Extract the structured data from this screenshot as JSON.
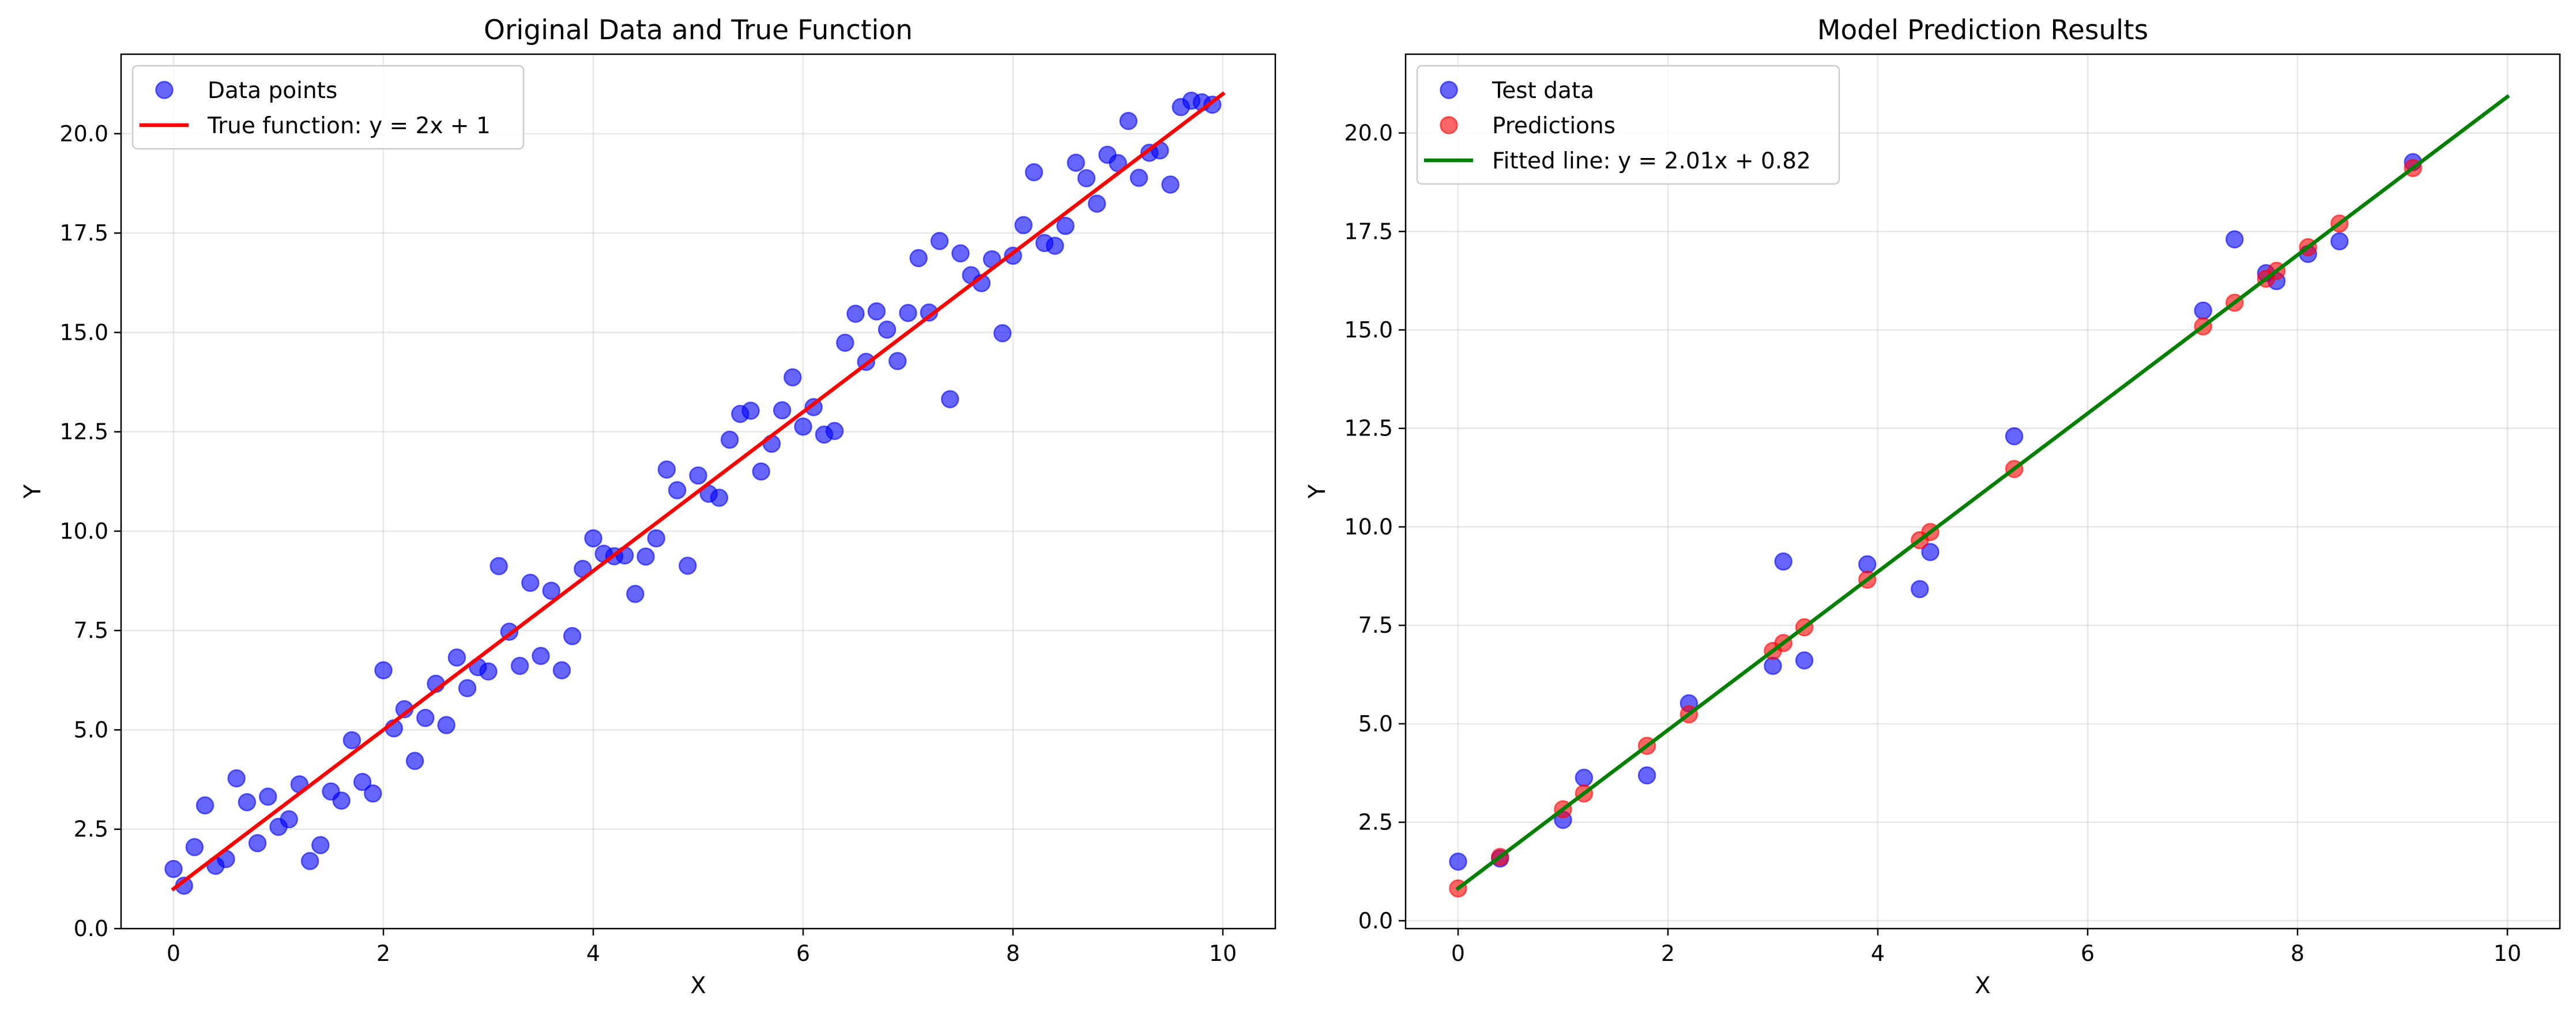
{
  "chart_data": [
    {
      "type": "scatter",
      "title": "Original Data and True Function",
      "xlabel": "X",
      "ylabel": "Y",
      "xlim": [
        -0.5,
        10.5
      ],
      "ylim": [
        0,
        22
      ],
      "xticks": [
        0,
        2,
        4,
        6,
        8,
        10
      ],
      "xtick_labels": [
        "0",
        "2",
        "4",
        "6",
        "8",
        "10"
      ],
      "yticks": [
        0,
        2.5,
        5,
        7.5,
        10,
        12.5,
        15,
        17.5,
        20
      ],
      "ytick_labels": [
        "0.0",
        "2.5",
        "5.0",
        "7.5",
        "10.0",
        "12.5",
        "15.0",
        "17.5",
        "20.0"
      ],
      "grid": true,
      "legend_position": "top-left",
      "series": [
        {
          "name": "Data points",
          "kind": "scatter",
          "color": "#0000ff",
          "x": [
            0.0,
            0.1,
            0.2,
            0.3,
            0.4,
            0.5,
            0.6,
            0.7,
            0.8,
            0.9,
            1.0,
            1.1,
            1.2,
            1.3,
            1.4,
            1.5,
            1.6,
            1.7,
            1.8,
            1.9,
            2.0,
            2.1,
            2.2,
            2.3,
            2.4,
            2.5,
            2.6,
            2.7,
            2.8,
            2.9,
            3.0,
            3.1,
            3.2,
            3.3,
            3.4,
            3.5,
            3.6,
            3.7,
            3.8,
            3.9,
            4.0,
            4.1,
            4.2,
            4.3,
            4.4,
            4.5,
            4.6,
            4.7,
            4.8,
            4.9,
            5.0,
            5.1,
            5.2,
            5.3,
            5.4,
            5.5,
            5.6,
            5.7,
            5.8,
            5.9,
            6.0,
            6.1,
            6.2,
            6.3,
            6.4,
            6.5,
            6.6,
            6.7,
            6.8,
            6.9,
            7.0,
            7.1,
            7.2,
            7.3,
            7.4,
            7.5,
            7.6,
            7.7,
            7.8,
            7.9,
            8.0,
            8.1,
            8.2,
            8.3,
            8.4,
            8.5,
            8.6,
            8.7,
            8.8,
            8.9,
            9.0,
            9.1,
            9.2,
            9.3,
            9.4,
            9.5,
            9.6,
            9.7,
            9.8,
            9.9
          ],
          "y": [
            1.5,
            1.08,
            2.05,
            3.1,
            1.58,
            1.75,
            3.78,
            3.18,
            2.15,
            3.32,
            2.56,
            2.75,
            3.63,
            1.7,
            2.1,
            3.45,
            3.22,
            4.74,
            3.69,
            3.4,
            6.5,
            5.04,
            5.52,
            4.22,
            5.3,
            6.16,
            5.12,
            6.82,
            6.05,
            6.58,
            6.47,
            9.12,
            7.47,
            6.61,
            8.7,
            6.86,
            8.5,
            6.5,
            7.36,
            9.05,
            9.82,
            9.43,
            9.37,
            9.39,
            8.42,
            9.36,
            9.82,
            11.55,
            11.03,
            9.13,
            11.4,
            10.94,
            10.84,
            12.3,
            12.95,
            13.03,
            11.5,
            12.2,
            13.04,
            13.87,
            12.63,
            13.12,
            12.43,
            12.52,
            14.74,
            15.47,
            14.26,
            15.53,
            15.07,
            14.28,
            15.49,
            16.87,
            15.5,
            17.3,
            13.32,
            16.99,
            16.44,
            16.24,
            16.84,
            14.98,
            16.93,
            17.7,
            19.03,
            17.25,
            17.18,
            17.68,
            19.27,
            18.88,
            18.24,
            19.47,
            19.26,
            20.32,
            18.89,
            19.52,
            19.58,
            18.72,
            20.67,
            20.83,
            20.79,
            20.73
          ]
        },
        {
          "name": "True function: y = 2x + 1",
          "kind": "line",
          "color": "#ff0000",
          "x": [
            0,
            10
          ],
          "y": [
            1,
            21
          ]
        }
      ]
    },
    {
      "type": "scatter",
      "title": "Model Prediction Results",
      "xlabel": "X",
      "ylabel": "Y",
      "xlim": [
        -0.5,
        10.5
      ],
      "ylim": [
        -0.2,
        22
      ],
      "xticks": [
        0,
        2,
        4,
        6,
        8,
        10
      ],
      "xtick_labels": [
        "0",
        "2",
        "4",
        "6",
        "8",
        "10"
      ],
      "yticks": [
        0,
        2.5,
        5,
        7.5,
        10,
        12.5,
        15,
        17.5,
        20
      ],
      "ytick_labels": [
        "0.0",
        "2.5",
        "5.0",
        "7.5",
        "10.0",
        "12.5",
        "15.0",
        "17.5",
        "20.0"
      ],
      "grid": true,
      "legend_position": "top-left",
      "series": [
        {
          "name": "Test data",
          "kind": "scatter",
          "color": "#0000ff",
          "x": [
            0.0,
            0.4,
            1.0,
            1.2,
            1.8,
            2.2,
            3.0,
            3.1,
            3.3,
            3.9,
            4.4,
            4.5,
            5.3,
            7.1,
            7.4,
            7.7,
            7.8,
            8.1,
            8.4,
            9.1
          ],
          "y": [
            1.5,
            1.58,
            2.56,
            3.63,
            3.69,
            5.52,
            6.47,
            9.12,
            6.61,
            9.05,
            8.42,
            9.36,
            12.3,
            15.49,
            17.3,
            16.44,
            16.24,
            16.93,
            17.25,
            19.26
          ]
        },
        {
          "name": "Predictions",
          "kind": "scatter",
          "color": "#ff0000",
          "x": [
            0.0,
            0.4,
            1.0,
            1.2,
            1.8,
            2.2,
            3.0,
            3.1,
            3.3,
            3.9,
            4.4,
            4.5,
            5.3,
            7.1,
            7.4,
            7.7,
            7.8,
            8.1,
            8.4,
            9.1
          ],
          "y": [
            0.82,
            1.62,
            2.83,
            3.23,
            4.44,
            5.24,
            6.85,
            7.05,
            7.45,
            8.66,
            9.66,
            9.87,
            11.47,
            15.09,
            15.69,
            16.3,
            16.5,
            17.1,
            17.7,
            19.11
          ]
        },
        {
          "name": "Fitted line: y = 2.01x + 0.82",
          "kind": "line",
          "color": "#008000",
          "x": [
            0,
            10
          ],
          "y": [
            0.82,
            20.92
          ]
        }
      ]
    }
  ]
}
